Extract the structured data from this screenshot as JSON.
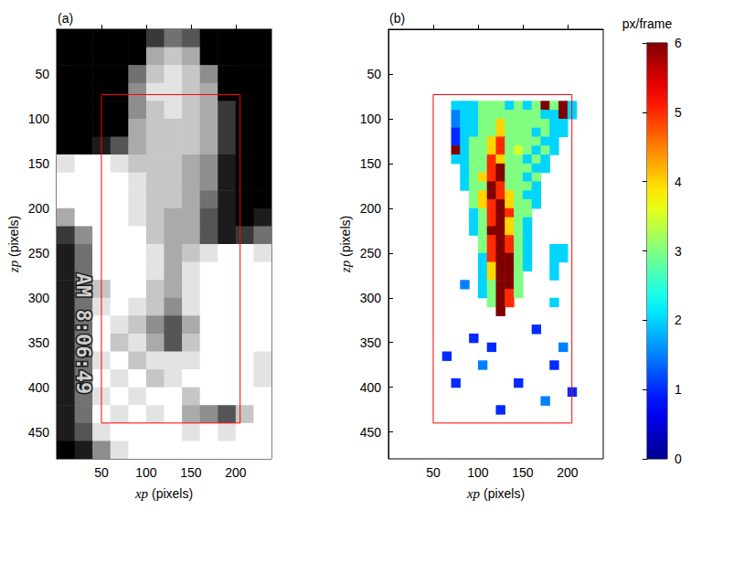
{
  "chart_data": [
    {
      "type": "image",
      "title": "(a)",
      "xlabel": "xp (pixels)",
      "ylabel": "zp (pixels)",
      "xlim": [
        0,
        240
      ],
      "ylim": [
        0,
        480
      ],
      "xticks": [
        50,
        100,
        150,
        200
      ],
      "yticks": [
        50,
        100,
        150,
        200,
        250,
        300,
        350,
        400,
        450
      ],
      "x": [
        10,
        30,
        50,
        70,
        90,
        110,
        130,
        150,
        170,
        190,
        210,
        230
      ],
      "z": [
        10,
        30,
        50,
        70,
        90,
        110,
        130,
        150,
        170,
        190,
        210,
        230,
        250,
        270,
        290,
        310,
        330,
        350,
        370,
        390,
        410,
        430,
        450,
        470
      ],
      "brightness_range": [
        0,
        9
      ],
      "brightness": [
        [
          0,
          0,
          0,
          0,
          0,
          2,
          4,
          3,
          0,
          0,
          0,
          0
        ],
        [
          0,
          0,
          0,
          0,
          0,
          6,
          7,
          6,
          0,
          0,
          0,
          0
        ],
        [
          0,
          0,
          0,
          0,
          4,
          7,
          8,
          7,
          5,
          0,
          0,
          0
        ],
        [
          0,
          0,
          0,
          0,
          5,
          8,
          8,
          7,
          6,
          0,
          0,
          0
        ],
        [
          0,
          0,
          0,
          0,
          5,
          7,
          8,
          7,
          6,
          2,
          0,
          0
        ],
        [
          0,
          0,
          0,
          0,
          6,
          7,
          7,
          7,
          6,
          2,
          0,
          0
        ],
        [
          0,
          0,
          1,
          3,
          6,
          7,
          7,
          7,
          6,
          2,
          0,
          0
        ],
        [
          8,
          9,
          9,
          8,
          7,
          7,
          7,
          6,
          5,
          1,
          0,
          0
        ],
        [
          9,
          9,
          9,
          9,
          8,
          7,
          7,
          6,
          5,
          1,
          0,
          0
        ],
        [
          9,
          9,
          9,
          9,
          8,
          7,
          7,
          6,
          4,
          1,
          0,
          0
        ],
        [
          6,
          9,
          9,
          9,
          8,
          7,
          6,
          6,
          3,
          1,
          0,
          1
        ],
        [
          2,
          5,
          9,
          9,
          9,
          7,
          6,
          6,
          3,
          1,
          2,
          4
        ],
        [
          1,
          4,
          9,
          9,
          9,
          8,
          6,
          7,
          8,
          9,
          9,
          8
        ],
        [
          1,
          4,
          9,
          9,
          9,
          8,
          6,
          8,
          9,
          9,
          9,
          9
        ],
        [
          1,
          4,
          7,
          9,
          9,
          7,
          6,
          8,
          9,
          9,
          9,
          9
        ],
        [
          1,
          4,
          8,
          9,
          8,
          7,
          5,
          8,
          9,
          9,
          9,
          9
        ],
        [
          1,
          4,
          9,
          8,
          7,
          5,
          3,
          6,
          9,
          9,
          9,
          9
        ],
        [
          1,
          4,
          9,
          7,
          8,
          6,
          3,
          7,
          9,
          9,
          9,
          9
        ],
        [
          1,
          4,
          8,
          9,
          7,
          8,
          8,
          8,
          9,
          9,
          9,
          8
        ],
        [
          1,
          4,
          9,
          8,
          9,
          7,
          8,
          9,
          9,
          9,
          9,
          8
        ],
        [
          1,
          4,
          8,
          9,
          8,
          9,
          9,
          7,
          9,
          9,
          9,
          9
        ],
        [
          1,
          4,
          9,
          8,
          9,
          8,
          9,
          6,
          5,
          3,
          7,
          9
        ],
        [
          1,
          3,
          8,
          9,
          9,
          9,
          9,
          8,
          9,
          8,
          9,
          9
        ],
        [
          0,
          1,
          5,
          8,
          9,
          9,
          9,
          9,
          9,
          9,
          9,
          9
        ]
      ],
      "annotations": [
        {
          "text": "AM 8:06:49",
          "x": 30,
          "z": 340
        }
      ],
      "roi": {
        "x": [
          50,
          205
        ],
        "z": [
          73,
          440
        ],
        "color": "#ff0000"
      }
    },
    {
      "type": "heatmap",
      "title": "(b)",
      "xlabel": "xp (pixels)",
      "ylabel": "zp (pixels)",
      "xlim": [
        0,
        240
      ],
      "ylim": [
        0,
        480
      ],
      "xticks": [
        50,
        100,
        150,
        200
      ],
      "yticks": [
        50,
        100,
        150,
        200,
        250,
        300,
        350,
        400,
        450
      ],
      "x": [
        75,
        85,
        95,
        105,
        115,
        125,
        135,
        145,
        155,
        165,
        175,
        185,
        195,
        205
      ],
      "z": [
        85,
        95,
        105,
        115,
        125,
        135,
        145,
        155,
        165,
        175,
        185,
        195,
        205,
        215,
        225,
        235,
        245,
        255,
        265,
        275,
        285,
        295,
        305,
        315
      ],
      "values": [
        [
          2,
          2,
          2,
          3,
          3,
          3,
          2,
          3,
          2,
          3,
          6,
          3,
          6,
          2
        ],
        [
          1.5,
          2,
          2,
          3,
          3,
          3,
          3,
          3,
          3,
          3,
          2,
          2,
          6,
          2
        ],
        [
          1.5,
          2,
          2,
          3,
          3,
          4,
          3,
          3,
          3,
          3,
          3,
          2,
          2,
          null
        ],
        [
          1,
          2,
          2,
          3,
          3,
          4,
          3,
          3,
          3,
          2,
          3,
          2,
          2,
          null
        ],
        [
          1,
          2,
          3,
          3,
          4,
          5,
          3,
          3,
          3,
          3,
          2,
          2,
          null,
          null
        ],
        [
          6,
          2,
          3,
          3,
          4,
          5,
          3,
          3.5,
          3,
          2,
          3,
          2,
          null,
          null
        ],
        [
          2,
          2,
          3,
          3,
          5,
          4,
          3,
          3,
          2,
          3,
          2,
          null,
          null,
          null
        ],
        [
          null,
          2,
          3,
          3,
          5,
          6,
          3,
          3,
          3,
          2,
          2,
          null,
          null,
          null
        ],
        [
          null,
          2,
          3,
          4,
          5,
          6,
          3,
          3,
          2,
          3,
          null,
          null,
          null,
          null
        ],
        [
          null,
          2,
          3,
          3,
          6,
          5,
          3,
          3,
          3,
          2,
          null,
          null,
          null,
          null
        ],
        [
          null,
          null,
          3,
          4,
          6,
          5,
          4,
          3,
          2,
          2,
          null,
          null,
          null,
          null
        ],
        [
          null,
          null,
          3,
          4,
          5,
          6,
          4,
          3,
          3,
          2,
          null,
          null,
          null,
          null
        ],
        [
          null,
          null,
          2,
          3,
          5,
          6,
          5,
          3,
          3,
          null,
          null,
          null,
          null,
          null
        ],
        [
          null,
          null,
          2,
          3,
          5,
          6,
          4,
          3,
          2,
          null,
          null,
          null,
          null,
          null
        ],
        [
          null,
          null,
          2,
          3,
          6,
          6,
          4,
          3,
          2,
          null,
          null,
          null,
          null,
          null
        ],
        [
          null,
          null,
          null,
          3,
          5,
          6,
          5,
          3,
          2,
          null,
          null,
          null,
          null,
          null
        ],
        [
          null,
          null,
          null,
          3,
          5,
          6,
          5,
          3,
          2,
          null,
          null,
          2,
          2,
          null
        ],
        [
          null,
          null,
          null,
          2,
          5,
          6,
          6,
          3,
          2,
          null,
          null,
          2,
          2,
          null
        ],
        [
          null,
          null,
          null,
          2,
          4,
          6,
          6,
          3,
          2,
          null,
          null,
          2,
          null,
          null
        ],
        [
          null,
          null,
          null,
          2,
          4,
          6,
          6,
          3,
          null,
          null,
          null,
          2,
          null,
          null
        ],
        [
          null,
          null,
          null,
          2,
          3,
          6,
          6,
          3,
          null,
          null,
          null,
          null,
          null,
          null
        ],
        [
          null,
          null,
          null,
          2,
          3,
          6,
          5,
          3,
          null,
          null,
          null,
          null,
          null,
          null
        ],
        [
          null,
          null,
          null,
          null,
          3,
          6,
          5,
          null,
          null,
          null,
          null,
          null,
          null,
          null
        ],
        [
          null,
          null,
          null,
          null,
          null,
          6,
          null,
          null,
          null,
          null,
          null,
          null,
          null,
          null
        ]
      ],
      "isolated_cells": [
        [
          95,
          345,
          1
        ],
        [
          105,
          375,
          1.5
        ],
        [
          75,
          395,
          1
        ],
        [
          185,
          375,
          1
        ],
        [
          195,
          355,
          1.5
        ],
        [
          165,
          335,
          1
        ],
        [
          205,
          405,
          1
        ],
        [
          125,
          425,
          1
        ],
        [
          85,
          285,
          1.5
        ],
        [
          115,
          355,
          1
        ],
        [
          145,
          395,
          1
        ],
        [
          185,
          305,
          2
        ],
        [
          65,
          365,
          1
        ],
        [
          175,
          415,
          1.5
        ]
      ],
      "colorbar": {
        "label": "px/frame",
        "range": [
          0,
          6
        ],
        "ticks": [
          0,
          1,
          2,
          3,
          4,
          5,
          6
        ]
      },
      "roi": {
        "x": [
          50,
          205
        ],
        "z": [
          73,
          440
        ],
        "color": "#ff0000"
      }
    }
  ]
}
